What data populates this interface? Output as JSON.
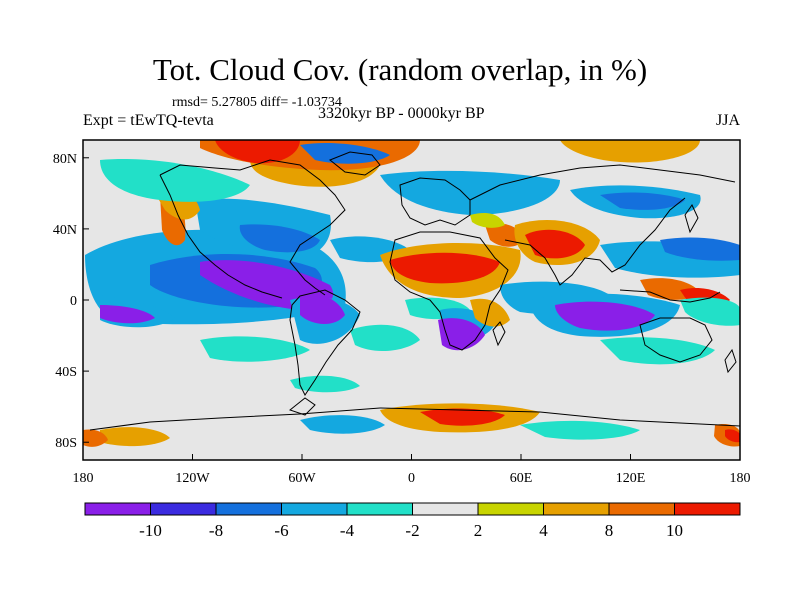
{
  "title": "Tot. Cloud Cov. (random overlap, in %)",
  "stats": "rmsd= 5.27805 diff= -1.03734",
  "experiment": "Expt = tEwTQ-tevta",
  "period": "3320kyr BP - 0000kyr BP",
  "season": "JJA",
  "lon_ticks": [
    "180",
    "120W",
    "60W",
    "0",
    "60E",
    "120E",
    "180"
  ],
  "lat_ticks": [
    "80N",
    "40N",
    "0",
    "40S",
    "80S"
  ],
  "colorbar": {
    "labels": [
      "-10",
      "-8",
      "-6",
      "-4",
      "-2",
      "2",
      "4",
      "8",
      "10"
    ],
    "colors": [
      "#8a1fe8",
      "#3b2be0",
      "#1470dd",
      "#14a8e0",
      "#22e0c8",
      "#e6e6e6",
      "#c8d400",
      "#e6a000",
      "#ea6a00",
      "#ec1a00"
    ]
  }
}
